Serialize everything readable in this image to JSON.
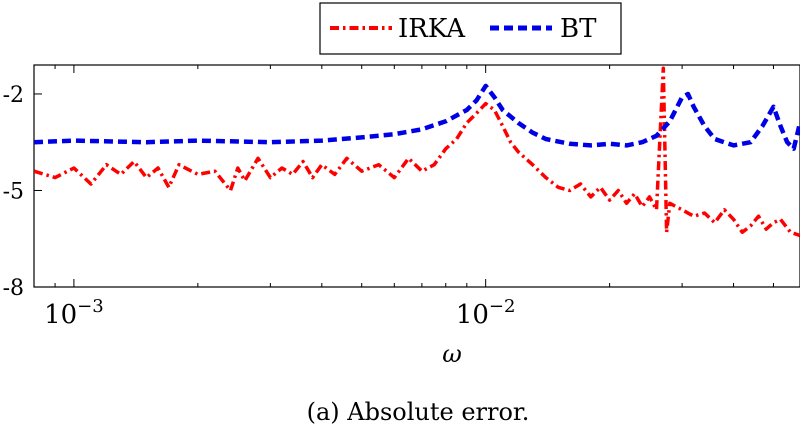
{
  "chart_data": {
    "type": "line",
    "title": "",
    "xlabel": "ω",
    "ylabel": "",
    "x_scale": "log",
    "y_scale": "log",
    "xlim": [
      0.0008,
      0.058
    ],
    "ylim": [
      -8,
      -1.1
    ],
    "x_major_ticks": [
      {
        "value": 0.001,
        "base": "10",
        "exp": "−3"
      },
      {
        "value": 0.01,
        "base": "10",
        "exp": "−2"
      }
    ],
    "y_ticks": [
      {
        "value": -2,
        "label": "-2"
      },
      {
        "value": -5,
        "label": "-5"
      },
      {
        "value": -8,
        "label": "-8"
      }
    ],
    "grid": false,
    "legend_position": "top-center",
    "series": [
      {
        "name": "IRKA",
        "color": "#ff0000",
        "style": "dash-dot",
        "points": [
          [
            0.0008,
            -4.4
          ],
          [
            0.0009,
            -4.6
          ],
          [
            0.001,
            -4.3
          ],
          [
            0.0011,
            -4.8
          ],
          [
            0.0012,
            -4.2
          ],
          [
            0.0013,
            -4.5
          ],
          [
            0.0014,
            -4.1
          ],
          [
            0.0015,
            -4.6
          ],
          [
            0.0016,
            -4.3
          ],
          [
            0.0017,
            -4.9
          ],
          [
            0.0018,
            -4.2
          ],
          [
            0.002,
            -4.5
          ],
          [
            0.0022,
            -4.4
          ],
          [
            0.0024,
            -5.0
          ],
          [
            0.0025,
            -4.3
          ],
          [
            0.0026,
            -4.7
          ],
          [
            0.0028,
            -4.0
          ],
          [
            0.003,
            -4.6
          ],
          [
            0.0032,
            -4.3
          ],
          [
            0.0034,
            -4.5
          ],
          [
            0.0036,
            -4.1
          ],
          [
            0.0038,
            -4.6
          ],
          [
            0.004,
            -4.2
          ],
          [
            0.0043,
            -4.5
          ],
          [
            0.0046,
            -4.0
          ],
          [
            0.005,
            -4.4
          ],
          [
            0.0055,
            -4.2
          ],
          [
            0.006,
            -4.6
          ],
          [
            0.0065,
            -4.0
          ],
          [
            0.007,
            -4.4
          ],
          [
            0.0075,
            -4.2
          ],
          [
            0.008,
            -3.7
          ],
          [
            0.0085,
            -3.4
          ],
          [
            0.009,
            -2.9
          ],
          [
            0.0095,
            -2.6
          ],
          [
            0.01,
            -2.3
          ],
          [
            0.0105,
            -2.5
          ],
          [
            0.011,
            -3.0
          ],
          [
            0.0115,
            -3.5
          ],
          [
            0.012,
            -3.8
          ],
          [
            0.013,
            -4.2
          ],
          [
            0.014,
            -4.6
          ],
          [
            0.015,
            -4.9
          ],
          [
            0.016,
            -5.0
          ],
          [
            0.017,
            -4.8
          ],
          [
            0.018,
            -5.2
          ],
          [
            0.019,
            -4.9
          ],
          [
            0.02,
            -5.3
          ],
          [
            0.021,
            -5.0
          ],
          [
            0.022,
            -5.4
          ],
          [
            0.023,
            -5.1
          ],
          [
            0.024,
            -5.5
          ],
          [
            0.025,
            -5.2
          ],
          [
            0.026,
            -5.6
          ],
          [
            0.027,
            -1.2
          ],
          [
            0.0275,
            -6.3
          ],
          [
            0.028,
            -5.4
          ],
          [
            0.03,
            -5.6
          ],
          [
            0.032,
            -5.8
          ],
          [
            0.034,
            -5.7
          ],
          [
            0.036,
            -6.0
          ],
          [
            0.038,
            -5.6
          ],
          [
            0.04,
            -5.9
          ],
          [
            0.042,
            -6.3
          ],
          [
            0.044,
            -6.1
          ],
          [
            0.046,
            -5.8
          ],
          [
            0.048,
            -6.2
          ],
          [
            0.05,
            -6.0
          ],
          [
            0.052,
            -5.9
          ],
          [
            0.055,
            -6.3
          ],
          [
            0.058,
            -6.4
          ]
        ]
      },
      {
        "name": "BT",
        "color": "#0000e6",
        "style": "dashed",
        "points": [
          [
            0.0008,
            -3.5
          ],
          [
            0.001,
            -3.45
          ],
          [
            0.0015,
            -3.5
          ],
          [
            0.002,
            -3.45
          ],
          [
            0.003,
            -3.5
          ],
          [
            0.004,
            -3.45
          ],
          [
            0.005,
            -3.35
          ],
          [
            0.006,
            -3.25
          ],
          [
            0.007,
            -3.1
          ],
          [
            0.008,
            -2.85
          ],
          [
            0.009,
            -2.5
          ],
          [
            0.0095,
            -2.2
          ],
          [
            0.01,
            -1.75
          ],
          [
            0.0105,
            -2.1
          ],
          [
            0.011,
            -2.5
          ],
          [
            0.012,
            -2.9
          ],
          [
            0.013,
            -3.2
          ],
          [
            0.014,
            -3.4
          ],
          [
            0.016,
            -3.55
          ],
          [
            0.018,
            -3.6
          ],
          [
            0.02,
            -3.55
          ],
          [
            0.022,
            -3.6
          ],
          [
            0.024,
            -3.5
          ],
          [
            0.026,
            -3.3
          ],
          [
            0.028,
            -2.85
          ],
          [
            0.03,
            -2.1
          ],
          [
            0.031,
            -2.0
          ],
          [
            0.032,
            -2.4
          ],
          [
            0.034,
            -3.0
          ],
          [
            0.036,
            -3.4
          ],
          [
            0.04,
            -3.6
          ],
          [
            0.044,
            -3.5
          ],
          [
            0.047,
            -3.0
          ],
          [
            0.05,
            -2.4
          ],
          [
            0.052,
            -3.0
          ],
          [
            0.054,
            -3.5
          ],
          [
            0.056,
            -3.7
          ],
          [
            0.058,
            -2.9
          ]
        ]
      }
    ]
  },
  "caption": "(a) Absolute error."
}
